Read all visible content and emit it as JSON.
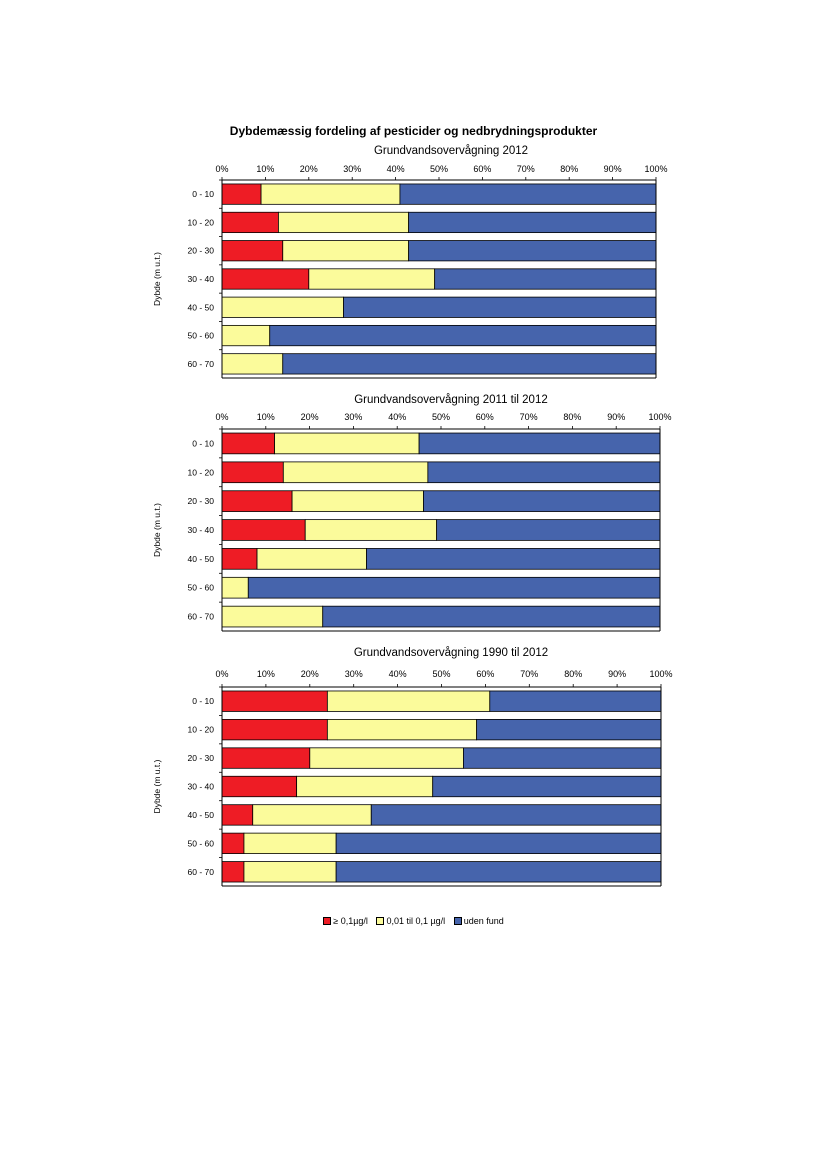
{
  "title": "Dybdemæssig fordeling af pesticider og nedbrydningsprodukter",
  "categories": [
    "0 - 10",
    "10 - 20",
    "20 - 30",
    "30 - 40",
    "40 - 50",
    "50 - 60",
    "60 - 70"
  ],
  "x_ticks": [
    "0%",
    "10%",
    "20%",
    "30%",
    "40%",
    "50%",
    "60%",
    "70%",
    "80%",
    "90%",
    "100%"
  ],
  "ylabel": "Dybde  (m u.t.)",
  "colors": {
    "red": "#ee1c25",
    "yellow": "#fbfb9b",
    "blue": "#4664ac"
  },
  "legend": [
    "≥ 0,1µg/l",
    "0,01 til 0,1 µg/l",
    "uden fund"
  ],
  "chart_data": [
    {
      "type": "bar",
      "title": "Grundvandsovervågning 2012",
      "categories": [
        "0 - 10",
        "10 - 20",
        "20 - 30",
        "30 - 40",
        "40 - 50",
        "50 - 60",
        "60 - 70"
      ],
      "xlim": [
        0,
        100
      ],
      "series": [
        {
          "name": "≥ 0,1µg/l",
          "values": [
            9,
            13,
            14,
            20,
            0,
            0,
            0
          ]
        },
        {
          "name": "0,01 til 0,1 µg/l",
          "values": [
            32,
            30,
            29,
            29,
            28,
            11,
            14
          ]
        },
        {
          "name": "uden fund",
          "values": [
            59,
            57,
            57,
            51,
            72,
            89,
            86
          ]
        }
      ]
    },
    {
      "type": "bar",
      "title": "Grundvandsovervågning 2011 til 2012",
      "categories": [
        "0 - 10",
        "10 - 20",
        "20 - 30",
        "30 - 40",
        "40 - 50",
        "50 - 60",
        "60 - 70"
      ],
      "xlim": [
        0,
        100
      ],
      "series": [
        {
          "name": "≥ 0,1µg/l",
          "values": [
            12,
            14,
            16,
            19,
            8,
            0,
            0
          ]
        },
        {
          "name": "0,01 til 0,1 µg/l",
          "values": [
            33,
            33,
            30,
            30,
            25,
            6,
            23
          ]
        },
        {
          "name": "uden fund",
          "values": [
            55,
            53,
            54,
            51,
            67,
            94,
            77
          ]
        }
      ]
    },
    {
      "type": "bar",
      "title": "Grundvandsovervågning 1990 til 2012",
      "categories": [
        "0 - 10",
        "10 - 20",
        "20 - 30",
        "30 - 40",
        "40 - 50",
        "50 - 60",
        "60 - 70"
      ],
      "xlim": [
        0,
        100
      ],
      "series": [
        {
          "name": "≥ 0,1µg/l",
          "values": [
            24,
            24,
            20,
            17,
            7,
            5,
            5
          ]
        },
        {
          "name": "0,01 til 0,1 µg/l",
          "values": [
            37,
            34,
            35,
            31,
            27,
            21,
            21
          ]
        },
        {
          "name": "uden fund",
          "values": [
            39,
            42,
            45,
            52,
            66,
            74,
            74
          ]
        }
      ]
    }
  ]
}
